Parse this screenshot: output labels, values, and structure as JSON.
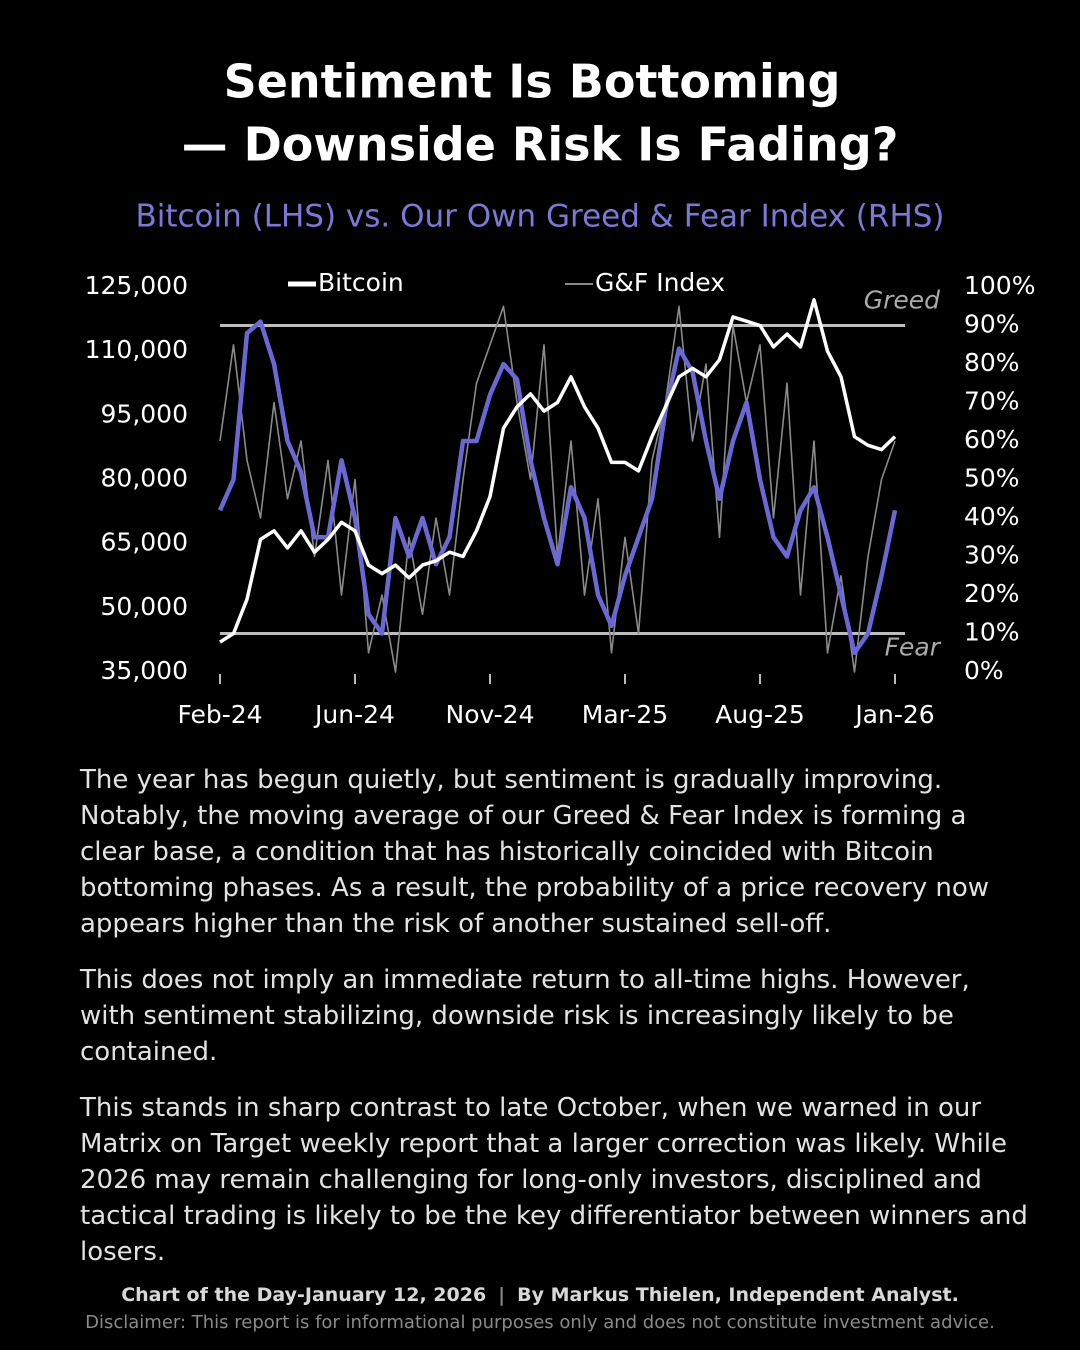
{
  "chart_data": {
    "type": "line",
    "title": [
      "Sentiment Is Bottoming",
      "— Downside Risk Is Fading?"
    ],
    "subtitle": "Bitcoin (LHS) vs. Our Own Greed & Fear Index (RHS)",
    "categories": [
      "Feb-24",
      null,
      null,
      null,
      null,
      null,
      null,
      null,
      null,
      null,
      "Jun-24",
      null,
      null,
      null,
      null,
      null,
      null,
      null,
      null,
      null,
      "Nov-24",
      null,
      null,
      null,
      null,
      null,
      null,
      null,
      null,
      null,
      "Mar-25",
      null,
      null,
      null,
      null,
      null,
      null,
      null,
      null,
      null,
      "Aug-25",
      null,
      null,
      null,
      null,
      null,
      null,
      null,
      null,
      null,
      "Jan-26"
    ],
    "series": [
      {
        "name": "G&F Index",
        "color": "#8a8a8a",
        "axis": "y2",
        "values": [
          60,
          85,
          55,
          40,
          70,
          45,
          60,
          30,
          55,
          20,
          50,
          5,
          20,
          0,
          35,
          15,
          40,
          20,
          50,
          75,
          85,
          95,
          70,
          50,
          85,
          30,
          60,
          20,
          45,
          5,
          35,
          10,
          55,
          70,
          95,
          60,
          80,
          35,
          90,
          70,
          85,
          40,
          75,
          20,
          60,
          5,
          25,
          0,
          30,
          50,
          60
        ]
      },
      {
        "color": "#6b68d6",
        "axis": "y2",
        "values": [
          42,
          50,
          88,
          91,
          80,
          60,
          52,
          35,
          35,
          55,
          40,
          15,
          10,
          40,
          30,
          40,
          28,
          35,
          60,
          60,
          72,
          80,
          76,
          55,
          40,
          28,
          48,
          40,
          20,
          12,
          25,
          35,
          45,
          68,
          84,
          78,
          60,
          45,
          60,
          70,
          50,
          35,
          30,
          42,
          48,
          35,
          20,
          5,
          10,
          25,
          42
        ]
      },
      {
        "name": "Bitcoin",
        "color": "#ffffff",
        "axis": "y",
        "values": [
          42000,
          44000,
          52000,
          66000,
          68000,
          64000,
          68000,
          63000,
          66000,
          70000,
          68000,
          60000,
          58000,
          60000,
          57000,
          60000,
          61000,
          63000,
          62000,
          68000,
          76000,
          92000,
          97000,
          100000,
          96000,
          98000,
          104000,
          97000,
          92000,
          84000,
          84000,
          82000,
          90000,
          97000,
          104000,
          106000,
          104000,
          108000,
          118000,
          117000,
          116000,
          111000,
          114000,
          111000,
          122000,
          110000,
          104000,
          90000,
          88000,
          87000,
          90000
        ]
      }
    ],
    "ylim": [
      35000,
      125000
    ],
    "yticks": [
      {
        "value": 35000,
        "label": "35,000"
      },
      {
        "value": 50000,
        "label": "50,000"
      },
      {
        "value": 65000,
        "label": "65,000"
      },
      {
        "value": 80000,
        "label": "80,000"
      },
      {
        "value": 95000,
        "label": "95,000"
      },
      {
        "value": 110000,
        "label": "110,000"
      },
      {
        "value": 125000,
        "label": "125,000"
      }
    ],
    "y2lim": [
      0,
      100
    ],
    "y2ticks": [
      {
        "value": 0,
        "label": "0%"
      },
      {
        "value": 10,
        "label": "10%"
      },
      {
        "value": 20,
        "label": "20%"
      },
      {
        "value": 30,
        "label": "30%"
      },
      {
        "value": 40,
        "label": "40%"
      },
      {
        "value": 50,
        "label": "50%"
      },
      {
        "value": 60,
        "label": "60%"
      },
      {
        "value": 70,
        "label": "70%"
      },
      {
        "value": 80,
        "label": "80%"
      },
      {
        "value": 90,
        "label": "90%"
      },
      {
        "value": 100,
        "label": "100%"
      }
    ],
    "reference_lines": [
      {
        "value": 90,
        "label": "Greed",
        "axis": "y2"
      },
      {
        "value": 10,
        "label": "Fear",
        "axis": "y2"
      }
    ],
    "legend": "top"
  },
  "paragraphs": [
    "The year has begun quietly, but sentiment is gradually improving. Notably, the moving average of our Greed & Fear Index is forming a clear base, a condition that has historically coincided with Bitcoin bottoming phases. As a result, the probability of a price recovery now appears higher than the risk of another sustained sell-off.",
    "This does not imply an immediate return to all-time highs. However, with sentiment stabilizing, downside risk is increasingly likely to be contained.",
    "This stands in sharp contrast to late October, when we warned in our Matrix on Target weekly report that a larger correction was likely. While 2026 may remain challenging for long-only investors, disciplined and tactical trading is likely to be the key differentiator between winners and losers."
  ],
  "footer": {
    "credit": "Chart of the Day-January 12, 2026",
    "author": "By Markus Thielen, Independent Analyst.",
    "disclaimer": "Disclaimer: This report is for informational purposes only and does not constitute investment advice."
  }
}
